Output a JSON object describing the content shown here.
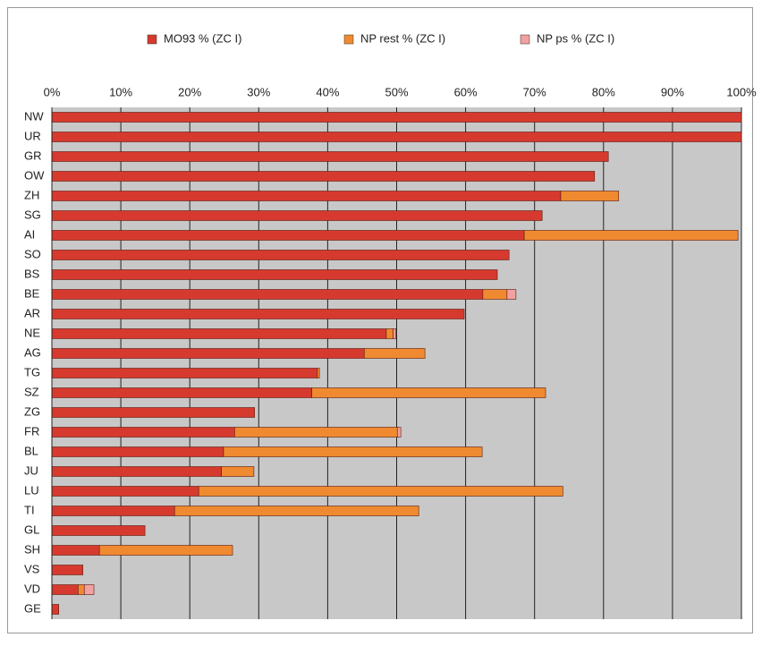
{
  "chart_data": {
    "type": "hbar-stacked",
    "categories": [
      "NW",
      "UR",
      "GR",
      "OW",
      "ZH",
      "SG",
      "AI",
      "SO",
      "BS",
      "BE",
      "AR",
      "NE",
      "AG",
      "TG",
      "SZ",
      "ZG",
      "FR",
      "BL",
      "JU",
      "LU",
      "TI",
      "GL",
      "SH",
      "VS",
      "VD",
      "GE"
    ],
    "series": [
      {
        "name": "MO93 % (ZC I)",
        "color": "#d63a2e",
        "values": [
          100,
          100,
          80.7,
          78.7,
          73.8,
          71.1,
          68.5,
          66.3,
          64.6,
          62.5,
          59.8,
          48.5,
          45.3,
          38.5,
          37.7,
          29.4,
          26.5,
          24.9,
          24.6,
          21.3,
          17.8,
          13.5,
          6.9,
          4.5,
          3.8,
          1.0
        ]
      },
      {
        "name": "NP rest % (ZC I)",
        "color": "#f08a30",
        "values": [
          0,
          0,
          0,
          0,
          8.4,
          0,
          31.0,
          0,
          0,
          3.5,
          0,
          1.0,
          8.8,
          0.3,
          33.9,
          0,
          23.6,
          37.5,
          4.7,
          52.8,
          35.4,
          0,
          19.3,
          0,
          0.9,
          0
        ]
      },
      {
        "name": "NP ps % (ZC I)",
        "color": "#f2a0a0",
        "values": [
          0,
          0,
          0,
          0,
          0,
          0,
          0,
          0,
          0,
          1.3,
          0,
          0.4,
          0,
          0,
          0,
          0,
          0.5,
          0,
          0,
          0,
          0,
          0,
          0,
          0,
          1.4,
          0
        ]
      }
    ],
    "xlim": [
      0,
      100
    ],
    "xticks": [
      {
        "value": 0,
        "label": "0%"
      },
      {
        "value": 10,
        "label": "10%"
      },
      {
        "value": 20,
        "label": "20%"
      },
      {
        "value": 30,
        "label": "30%"
      },
      {
        "value": 40,
        "label": "40%"
      },
      {
        "value": 50,
        "label": "50%"
      },
      {
        "value": 60,
        "label": "60%"
      },
      {
        "value": 70,
        "label": "70%"
      },
      {
        "value": 80,
        "label": "80%"
      },
      {
        "value": 90,
        "label": "90%"
      },
      {
        "value": 100,
        "label": "100%"
      }
    ],
    "grid": true,
    "legend": "top"
  }
}
